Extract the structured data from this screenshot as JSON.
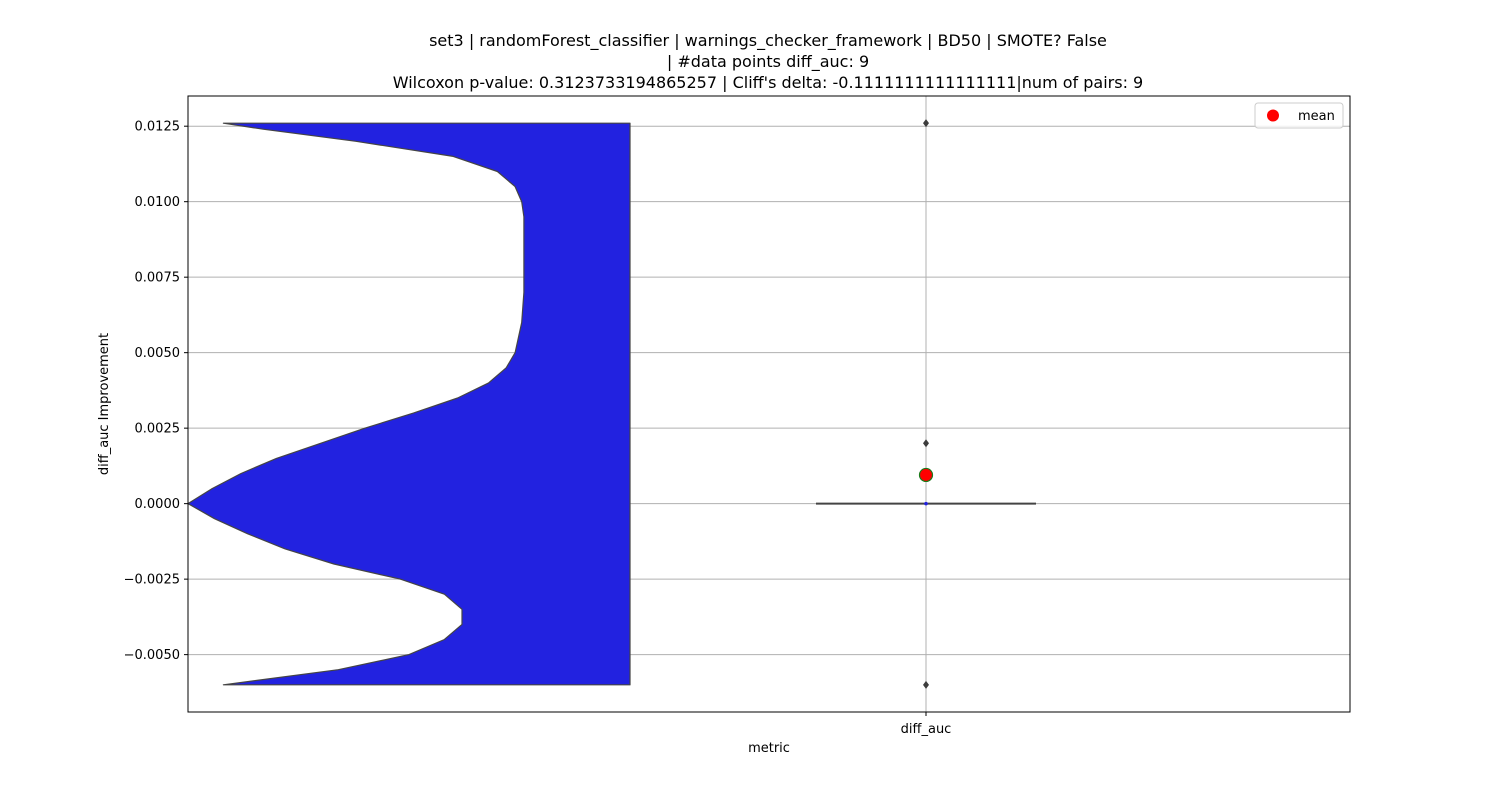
{
  "chart_data": {
    "type": "violin",
    "title_lines": [
      "set3 | randomForest_classifier | warnings_checker_framework | BD50 | SMOTE? False",
      "| #data points diff_auc: 9",
      "Wilcoxon p-value: 0.3123733194865257 | Cliff's delta: -0.1111111111111111|num of pairs: 9"
    ],
    "xlabel": "metric",
    "ylabel": "diff_auc Improvement",
    "categories": [
      "diff_auc"
    ],
    "ylim": [
      -0.0069,
      0.0135
    ],
    "yticks": [
      -0.005,
      -0.0025,
      0.0,
      0.0025,
      0.005,
      0.0075,
      0.01,
      0.0125
    ],
    "ytick_labels": [
      "−0.0050",
      "−0.0025",
      "0.0000",
      "0.0025",
      "0.0050",
      "0.0075",
      "0.0100",
      "0.0125"
    ],
    "grid": true,
    "legend": {
      "position": "top-right",
      "entries": [
        {
          "label": "mean",
          "color": "#ff0000"
        }
      ]
    },
    "violin": {
      "color": "#2222e0",
      "y_range": [
        -0.006,
        0.0126
      ],
      "profile": [
        [
          -0.006,
          0.08
        ],
        [
          -0.0055,
          0.34
        ],
        [
          -0.005,
          0.5
        ],
        [
          -0.0045,
          0.58
        ],
        [
          -0.004,
          0.62
        ],
        [
          -0.0035,
          0.62
        ],
        [
          -0.003,
          0.58
        ],
        [
          -0.0025,
          0.48
        ],
        [
          -0.002,
          0.33
        ],
        [
          -0.0015,
          0.22
        ],
        [
          -0.001,
          0.135
        ],
        [
          -0.0005,
          0.06
        ],
        [
          0.0,
          0.0
        ],
        [
          0.0005,
          0.055
        ],
        [
          0.001,
          0.12
        ],
        [
          0.0015,
          0.2
        ],
        [
          0.002,
          0.3
        ],
        [
          0.0025,
          0.4
        ],
        [
          0.003,
          0.51
        ],
        [
          0.0035,
          0.61
        ],
        [
          0.004,
          0.68
        ],
        [
          0.0045,
          0.72
        ],
        [
          0.005,
          0.74
        ],
        [
          0.006,
          0.755
        ],
        [
          0.007,
          0.76
        ],
        [
          0.008,
          0.76
        ],
        [
          0.009,
          0.76
        ],
        [
          0.0095,
          0.76
        ],
        [
          0.01,
          0.755
        ],
        [
          0.0105,
          0.74
        ],
        [
          0.011,
          0.7
        ],
        [
          0.0115,
          0.6
        ],
        [
          0.012,
          0.38
        ],
        [
          0.0124,
          0.17
        ],
        [
          0.0126,
          0.08
        ]
      ]
    },
    "boxplot": {
      "category": "diff_auc",
      "median": 0.0,
      "q1": 0.0,
      "q3": 0.0,
      "whisker_low": 0.0,
      "whisker_high": 0.0,
      "outliers": [
        0.0126,
        0.002,
        -0.006
      ],
      "mean": 0.00095
    }
  }
}
